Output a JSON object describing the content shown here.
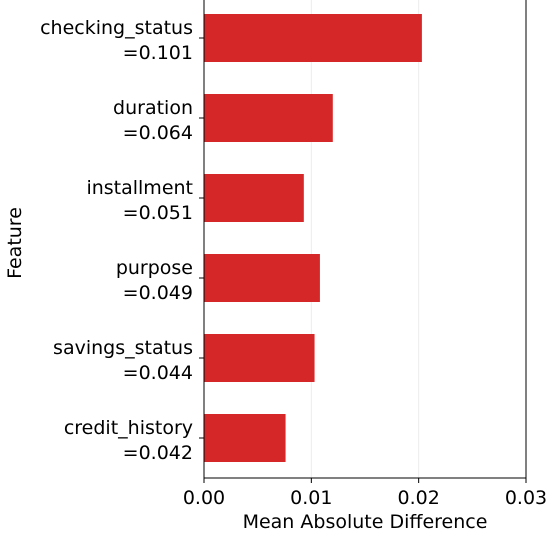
{
  "chart_data": {
    "type": "bar",
    "orientation": "horizontal",
    "categories": [
      [
        "checking_status",
        "=0.101"
      ],
      [
        "duration",
        "=0.064"
      ],
      [
        "installment",
        "=0.051"
      ],
      [
        "purpose",
        "=0.049"
      ],
      [
        "savings_status",
        "=0.044"
      ],
      [
        "credit_history",
        "=0.042"
      ]
    ],
    "values": [
      0.0203,
      0.012,
      0.0093,
      0.0108,
      0.0103,
      0.0076
    ],
    "xlim": [
      0,
      0.03
    ],
    "xticks": [
      "0.00",
      "0.01",
      "0.02",
      "0.03"
    ],
    "xlabel": "Mean Absolute Difference",
    "ylabel": "Feature",
    "bar_color": "#d62728",
    "grid": "vertical-faint",
    "legend": "none"
  }
}
